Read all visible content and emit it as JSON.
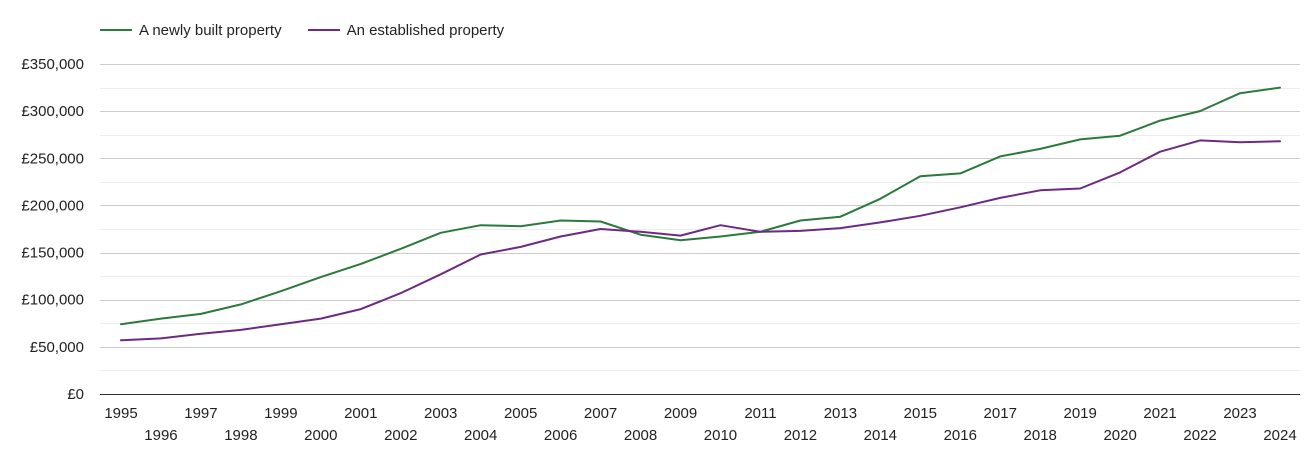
{
  "chart_data": {
    "type": "line",
    "x": [
      1995,
      1996,
      1997,
      1998,
      1999,
      2000,
      2001,
      2002,
      2003,
      2004,
      2005,
      2006,
      2007,
      2008,
      2009,
      2010,
      2011,
      2012,
      2013,
      2014,
      2015,
      2016,
      2017,
      2018,
      2019,
      2020,
      2021,
      2022,
      2023,
      2024
    ],
    "x_tick_labels": [
      "1995",
      "1996",
      "1997",
      "1998",
      "1999",
      "2000",
      "2001",
      "2002",
      "2003",
      "2004",
      "2005",
      "2006",
      "2007",
      "2008",
      "2009",
      "2010",
      "2011",
      "2012",
      "2013",
      "2014",
      "2015",
      "2016",
      "2017",
      "2018",
      "2019",
      "2020",
      "2021",
      "2022",
      "2023",
      "2024"
    ],
    "y_ticks": [
      0,
      50000,
      100000,
      150000,
      200000,
      250000,
      300000,
      350000
    ],
    "y_tick_labels": [
      "£0",
      "£50,000",
      "£100,000",
      "£150,000",
      "£200,000",
      "£250,000",
      "£300,000",
      "£350,000"
    ],
    "ylim": [
      0,
      350000
    ],
    "grid": true,
    "legend_position": "top-left",
    "series": [
      {
        "name": "A newly built property",
        "color": "#2a7a3b",
        "values": [
          74000,
          80000,
          85000,
          95000,
          109000,
          124000,
          138000,
          154000,
          171000,
          179000,
          178000,
          184000,
          183000,
          169000,
          163000,
          167000,
          172000,
          184000,
          188000,
          207000,
          231000,
          234000,
          252000,
          260000,
          270000,
          274000,
          290000,
          300000,
          319000,
          325000
        ]
      },
      {
        "name": "An established property",
        "color": "#6c2a82",
        "values": [
          57000,
          59000,
          64000,
          68000,
          74000,
          80000,
          90000,
          107000,
          127000,
          148000,
          156000,
          167000,
          175000,
          172000,
          168000,
          179000,
          172000,
          173000,
          176000,
          182000,
          189000,
          198000,
          208000,
          216000,
          218000,
          235000,
          257000,
          269000,
          267000,
          268000
        ]
      }
    ]
  }
}
